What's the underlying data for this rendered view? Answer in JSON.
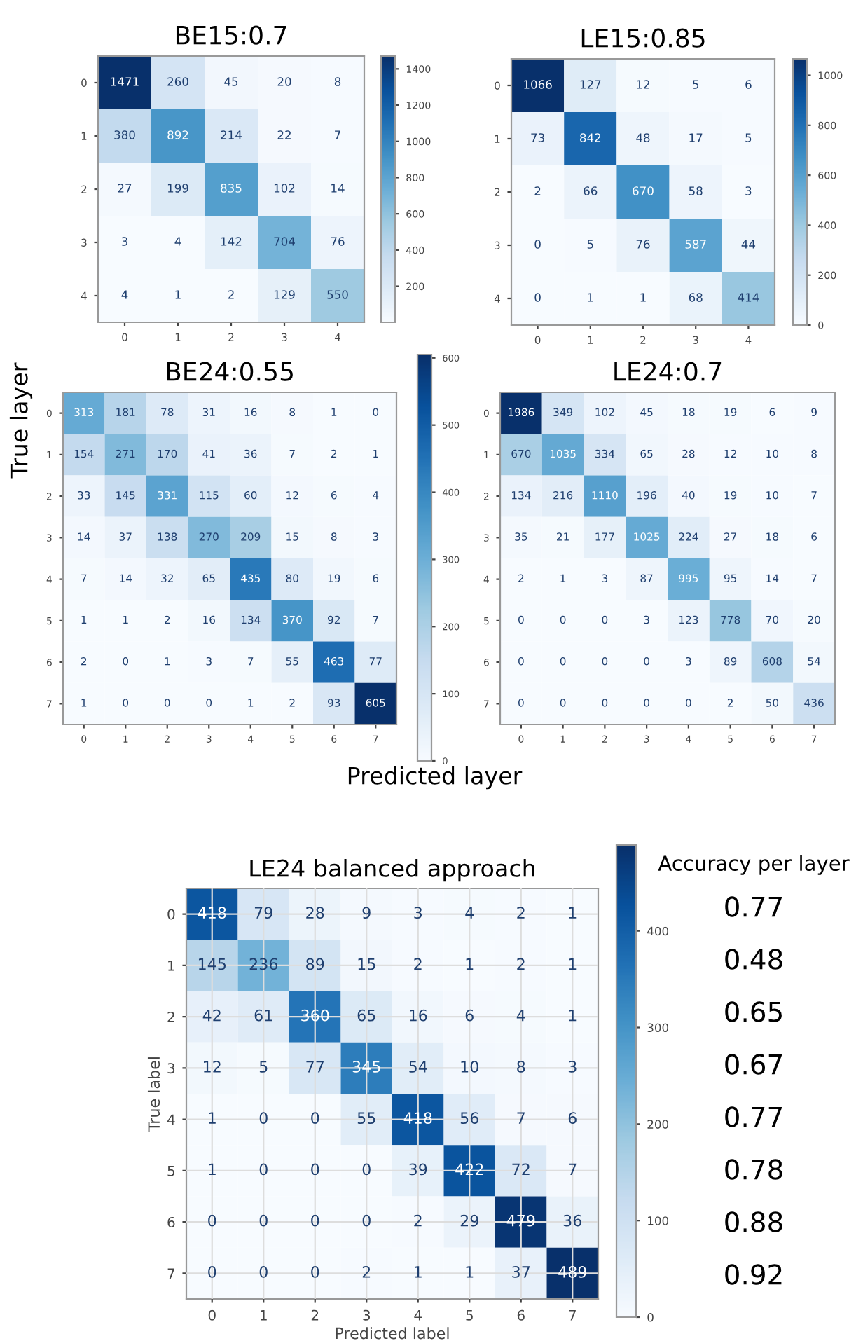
{
  "chart_data": [
    {
      "type": "heatmap",
      "title": "BE15:0.7",
      "categories": [
        "0",
        "1",
        "2",
        "3",
        "4"
      ],
      "y_categories": [
        "0",
        "1",
        "2",
        "3",
        "4"
      ],
      "cells": [
        [
          1471,
          260,
          45,
          20,
          8
        ],
        [
          380,
          892,
          214,
          22,
          7
        ],
        [
          27,
          199,
          835,
          102,
          14
        ],
        [
          3,
          4,
          142,
          704,
          76
        ],
        [
          4,
          1,
          2,
          129,
          550
        ]
      ],
      "clim": [
        1,
        1471
      ],
      "cticks": [
        200,
        400,
        600,
        800,
        1000,
        1200,
        1400
      ],
      "data_labels": true
    },
    {
      "type": "heatmap",
      "title": "LE15:0.85",
      "categories": [
        "0",
        "1",
        "2",
        "3",
        "4"
      ],
      "y_categories": [
        "0",
        "1",
        "2",
        "3",
        "4"
      ],
      "cells": [
        [
          1066,
          127,
          12,
          5,
          6
        ],
        [
          73,
          842,
          48,
          17,
          5
        ],
        [
          2,
          66,
          670,
          58,
          3
        ],
        [
          0,
          5,
          76,
          587,
          44
        ],
        [
          0,
          1,
          1,
          68,
          414
        ]
      ],
      "clim": [
        0,
        1066
      ],
      "cticks": [
        0,
        200,
        400,
        600,
        800,
        1000
      ],
      "data_labels": true
    },
    {
      "type": "heatmap",
      "title": "BE24:0.55",
      "ylabel": "True layer",
      "xlabel": "Predicted layer",
      "categories": [
        "0",
        "1",
        "2",
        "3",
        "4",
        "5",
        "6",
        "7"
      ],
      "y_categories": [
        "0",
        "1",
        "2",
        "3",
        "4",
        "5",
        "6",
        "7"
      ],
      "cells": [
        [
          313,
          181,
          78,
          31,
          16,
          8,
          1,
          0
        ],
        [
          154,
          271,
          170,
          41,
          36,
          7,
          2,
          1
        ],
        [
          33,
          145,
          331,
          115,
          60,
          12,
          6,
          4
        ],
        [
          14,
          37,
          138,
          270,
          209,
          15,
          8,
          3
        ],
        [
          7,
          14,
          32,
          65,
          435,
          80,
          19,
          6
        ],
        [
          1,
          1,
          2,
          16,
          134,
          370,
          92,
          7
        ],
        [
          2,
          0,
          1,
          3,
          7,
          55,
          463,
          77
        ],
        [
          1,
          0,
          0,
          0,
          1,
          2,
          93,
          605
        ]
      ],
      "clim": [
        0,
        605
      ],
      "cticks": [
        0,
        100,
        200,
        300,
        400,
        500,
        600
      ],
      "data_labels": true
    },
    {
      "type": "heatmap",
      "title": "LE24:0.7",
      "categories": [
        "0",
        "1",
        "2",
        "3",
        "4",
        "5",
        "6",
        "7"
      ],
      "y_categories": [
        "0",
        "1",
        "2",
        "3",
        "4",
        "5",
        "6",
        "7"
      ],
      "cells": [
        [
          1986,
          349,
          102,
          45,
          18,
          19,
          6,
          9
        ],
        [
          670,
          1035,
          334,
          65,
          28,
          12,
          10,
          8
        ],
        [
          134,
          216,
          1110,
          196,
          40,
          19,
          10,
          7
        ],
        [
          35,
          21,
          177,
          1025,
          224,
          27,
          18,
          6
        ],
        [
          2,
          1,
          3,
          87,
          995,
          95,
          14,
          7
        ],
        [
          0,
          0,
          0,
          3,
          123,
          778,
          70,
          20
        ],
        [
          0,
          0,
          0,
          0,
          3,
          89,
          608,
          54
        ],
        [
          0,
          0,
          0,
          0,
          0,
          2,
          50,
          436
        ]
      ],
      "data_labels": true
    },
    {
      "type": "heatmap",
      "title": "LE24 balanced approach",
      "xlabel": "Predicted label",
      "ylabel": "True label",
      "y2label": "Accuracy per layer",
      "categories": [
        "0",
        "1",
        "2",
        "3",
        "4",
        "5",
        "6",
        "7"
      ],
      "y_categories": [
        "0",
        "1",
        "2",
        "3",
        "4",
        "5",
        "6",
        "7"
      ],
      "y2_categories": [
        "0.77",
        "0.48",
        "0.65",
        "0.67",
        "0.77",
        "0.78",
        "0.88",
        "0.92"
      ],
      "cells": [
        [
          418,
          79,
          28,
          9,
          3,
          4,
          2,
          1
        ],
        [
          145,
          236,
          89,
          15,
          2,
          1,
          2,
          1
        ],
        [
          42,
          61,
          360,
          65,
          16,
          6,
          4,
          1
        ],
        [
          12,
          5,
          77,
          345,
          54,
          10,
          8,
          3
        ],
        [
          1,
          0,
          0,
          55,
          418,
          56,
          7,
          6
        ],
        [
          1,
          0,
          0,
          0,
          39,
          422,
          72,
          7
        ],
        [
          0,
          0,
          0,
          0,
          2,
          29,
          479,
          36
        ],
        [
          0,
          0,
          0,
          2,
          1,
          1,
          37,
          489
        ]
      ],
      "clim": [
        0,
        489
      ],
      "cticks": [
        0,
        100,
        200,
        300,
        400
      ],
      "data_labels": true,
      "grid": true
    }
  ]
}
